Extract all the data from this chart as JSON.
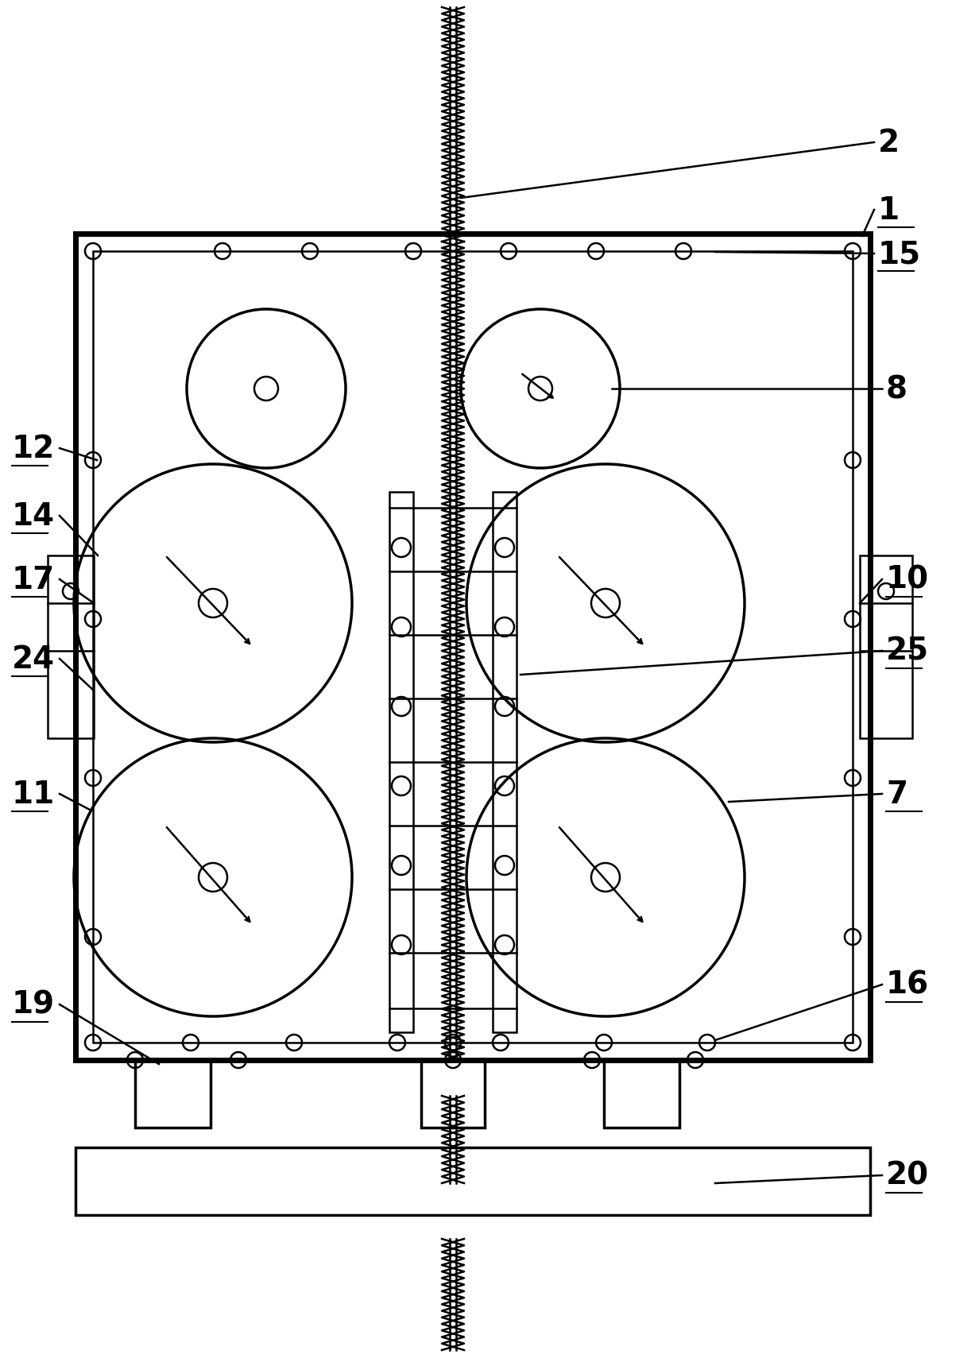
{
  "bg_color": "#ffffff",
  "line_color": "#000000",
  "fig_width": 12.32,
  "fig_height": 17.15
}
